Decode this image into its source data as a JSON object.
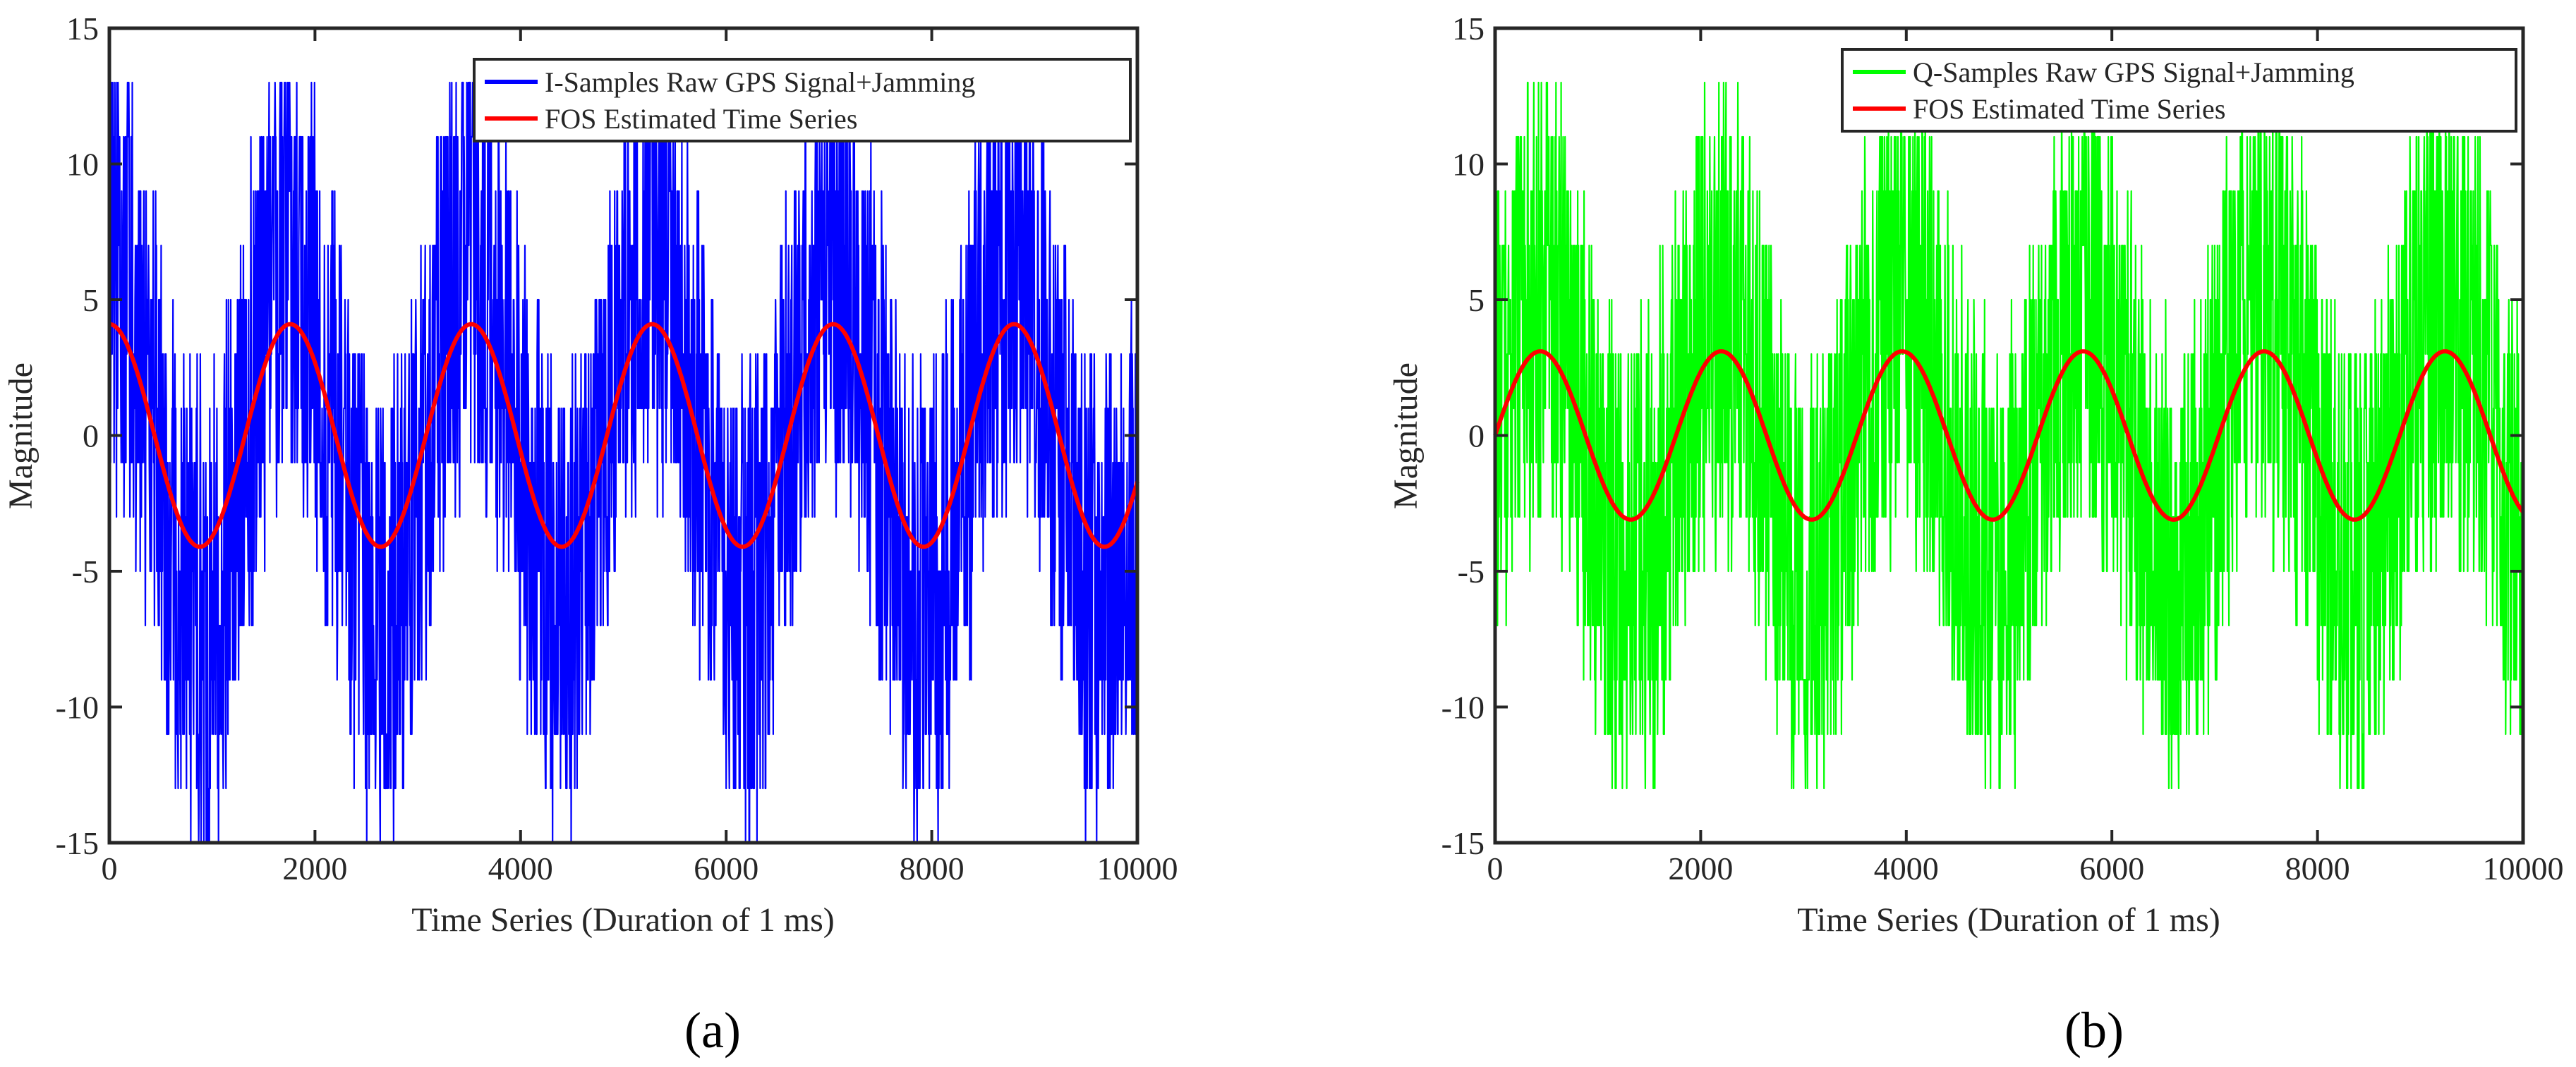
{
  "chart_data": [
    {
      "id": "a",
      "type": "line",
      "panel_label": "(a)",
      "title": "",
      "xlabel": "Time Series (Duration of 1 ms)",
      "ylabel": "Magnitude",
      "xlim": [
        0,
        10000
      ],
      "ylim": [
        -15,
        15
      ],
      "xticks": [
        0,
        2000,
        4000,
        6000,
        8000,
        10000
      ],
      "yticks": [
        -15,
        -10,
        -5,
        0,
        5,
        10,
        15
      ],
      "grid": false,
      "legend_position": "top-right",
      "series": [
        {
          "name": "I-Samples Raw GPS Signal+Jamming",
          "color": "#0000ff",
          "kind": "noisy",
          "description_values": {
            "amplitude": 4.1,
            "period": 1760,
            "phase": 0,
            "function": "cos",
            "range": [
              -15,
              13
            ]
          }
        },
        {
          "name": "FOS Estimated Time Series",
          "color": "#ff0000",
          "kind": "sinusoid",
          "description_values": {
            "amplitude": 4.1,
            "period": 1760,
            "phase": 0,
            "function": "cos"
          }
        }
      ]
    },
    {
      "id": "b",
      "type": "line",
      "panel_label": "(b)",
      "title": "",
      "xlabel": "Time Series (Duration of 1 ms)",
      "ylabel": "Magnitude",
      "xlim": [
        0,
        10000
      ],
      "ylim": [
        -15,
        15
      ],
      "xticks": [
        0,
        2000,
        4000,
        6000,
        8000,
        10000
      ],
      "yticks": [
        -15,
        -10,
        -5,
        0,
        5,
        10,
        15
      ],
      "grid": false,
      "legend_position": "top-right",
      "series": [
        {
          "name": "Q-Samples Raw GPS Signal+Jamming",
          "color": "#00ff00",
          "kind": "noisy",
          "description_values": {
            "amplitude": 3.1,
            "period": 1760,
            "phase": 0,
            "function": "sin",
            "range": [
              -13,
              13
            ]
          }
        },
        {
          "name": "FOS Estimated Time Series",
          "color": "#ff0000",
          "kind": "sinusoid",
          "description_values": {
            "amplitude": 3.1,
            "period": 1760,
            "phase": 0,
            "function": "sin"
          }
        }
      ]
    }
  ]
}
